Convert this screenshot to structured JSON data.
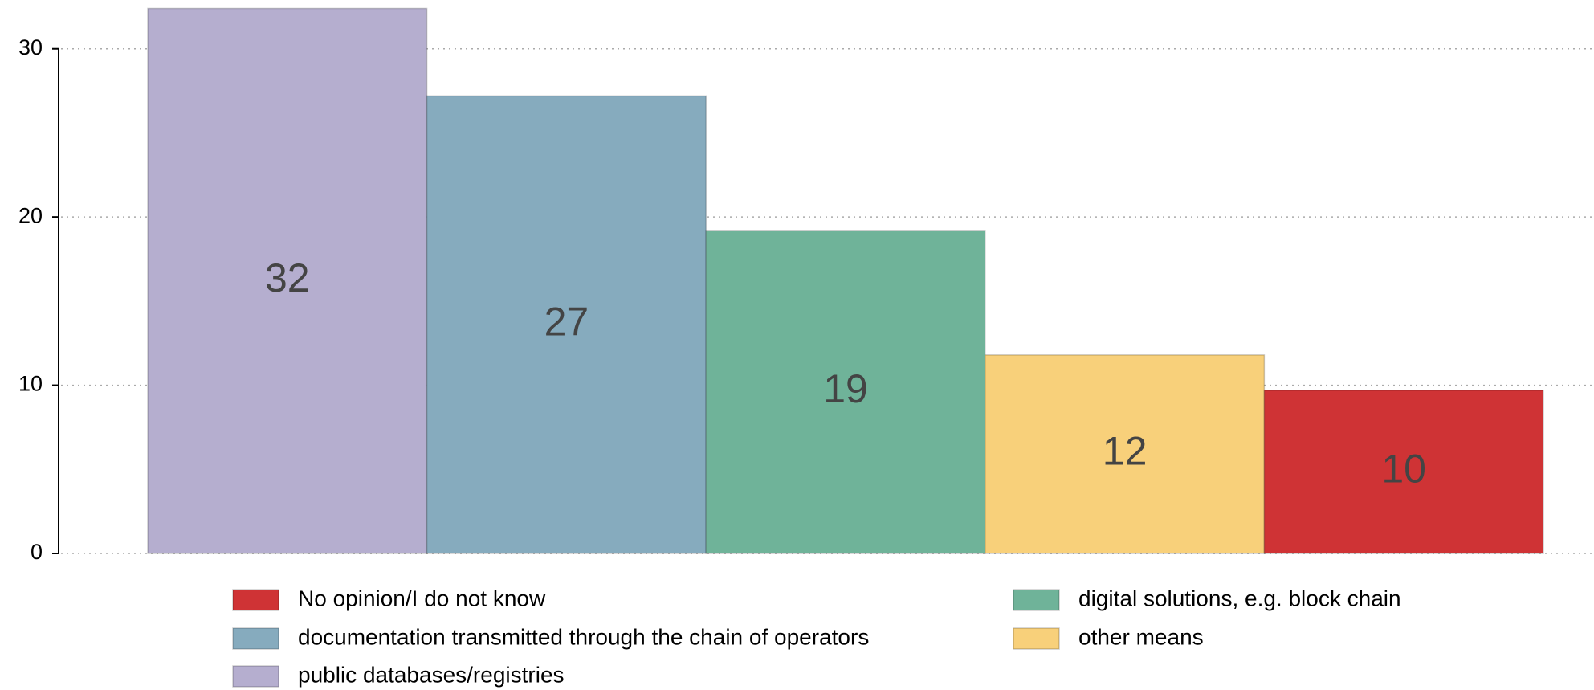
{
  "chart_data": {
    "type": "bar",
    "categories": [
      "public databases/registries",
      "documentation transmitted through the chain of operators",
      "digital solutions, e.g. block chain",
      "other means",
      "No opinion/I do not know"
    ],
    "values": [
      32.4,
      27.2,
      19.2,
      11.8,
      9.7
    ],
    "value_labels": [
      "32",
      "27",
      "19",
      "12",
      "10"
    ],
    "colors": [
      "#b5aecf",
      "#86abbe",
      "#6fb399",
      "#f8d07a",
      "#cf3335"
    ],
    "ylim": [
      0,
      32.9
    ],
    "yticks": [
      0,
      10,
      20,
      30
    ],
    "grid": true
  }
}
